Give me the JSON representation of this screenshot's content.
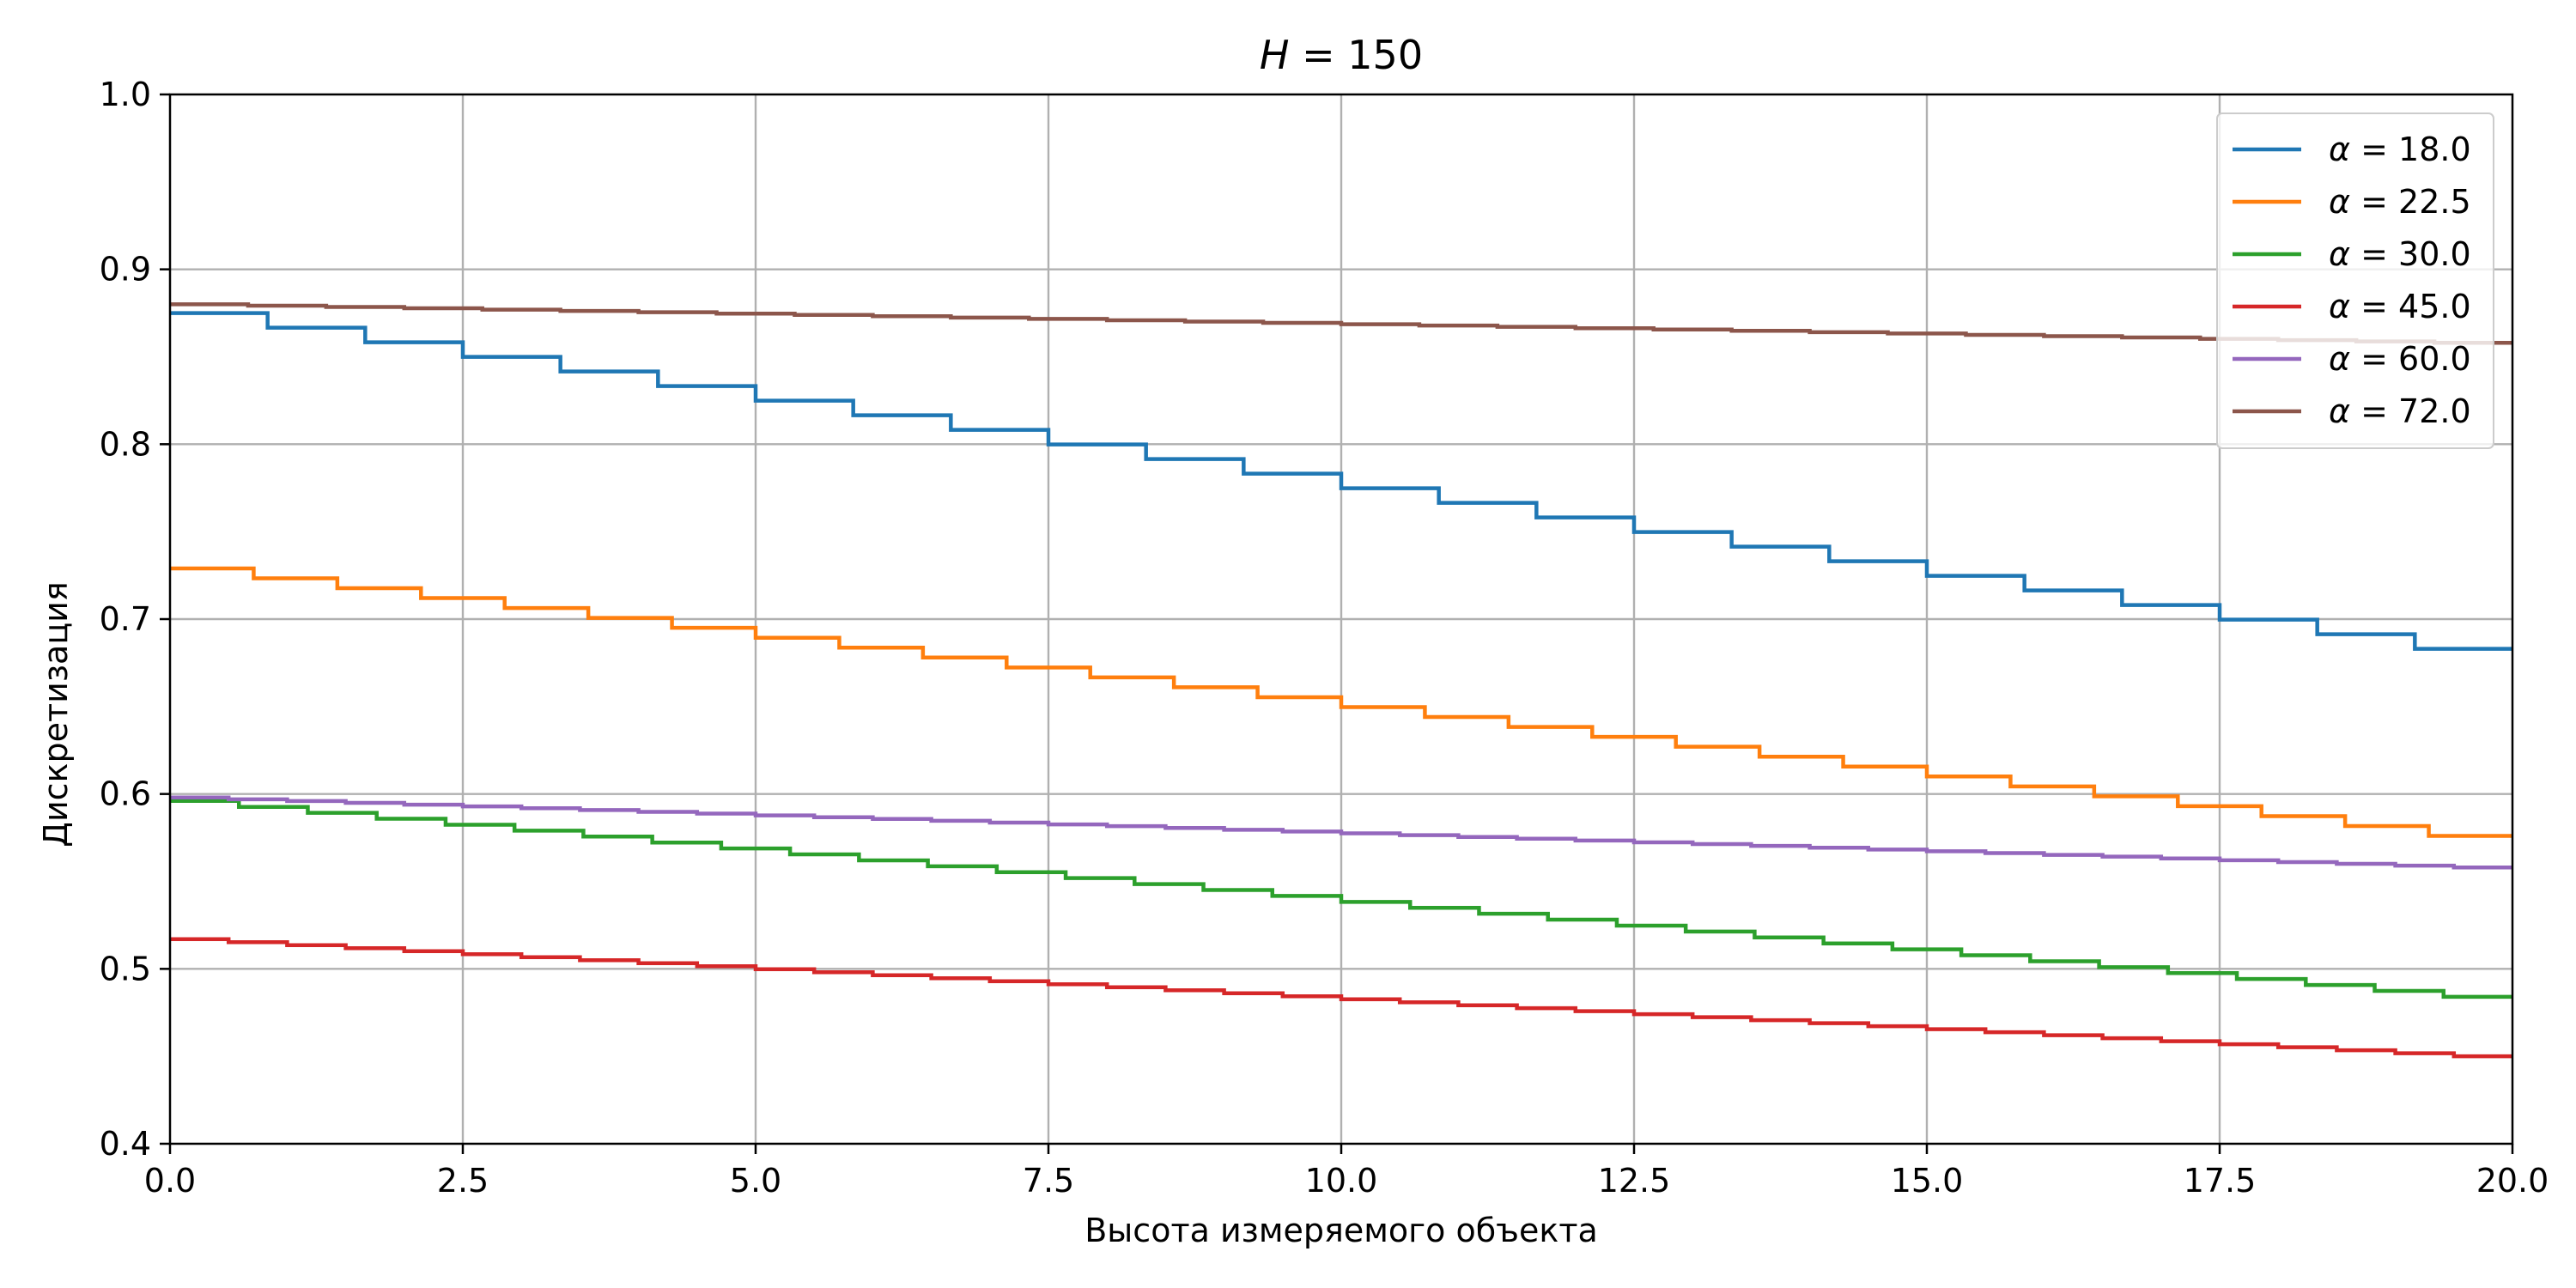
{
  "chart_data": {
    "type": "line",
    "drawstyle": "steps-post",
    "title": "H = 150",
    "title_parts": {
      "var": "H",
      "rest": " = 150"
    },
    "xlabel": "Высота измеряемого объекта",
    "ylabel": "Дискретизация",
    "xlim": [
      0,
      20
    ],
    "ylim": [
      0.4,
      1.0
    ],
    "xticks": [
      0,
      2.5,
      5,
      7.5,
      10,
      12.5,
      15,
      17.5,
      20
    ],
    "xtick_labels": [
      "0.0",
      "2.5",
      "5.0",
      "7.5",
      "10.0",
      "12.5",
      "15.0",
      "17.5",
      "20.0"
    ],
    "yticks": [
      0.4,
      0.5,
      0.6,
      0.7,
      0.8,
      0.9,
      1.0
    ],
    "ytick_labels": [
      "0.4",
      "0.5",
      "0.6",
      "0.7",
      "0.8",
      "0.9",
      "1.0"
    ],
    "grid": true,
    "legend_position": "top-right",
    "series": [
      {
        "name": "α = 18.0",
        "alpha": "18.0",
        "color": "#1f77b4",
        "x_start": 0,
        "x_end": 20,
        "y_start": 0.875,
        "y_end": 0.683,
        "steps": 24
      },
      {
        "name": "α = 22.5",
        "alpha": "22.5",
        "color": "#ff7f0e",
        "x_start": 0,
        "x_end": 20,
        "y_start": 0.729,
        "y_end": 0.576,
        "steps": 28
      },
      {
        "name": "α = 30.0",
        "alpha": "30.0",
        "color": "#2ca02c",
        "x_start": 0,
        "x_end": 20,
        "y_start": 0.596,
        "y_end": 0.484,
        "steps": 34
      },
      {
        "name": "α = 45.0",
        "alpha": "45.0",
        "color": "#d62728",
        "x_start": 0,
        "x_end": 20,
        "y_start": 0.517,
        "y_end": 0.45,
        "steps": 40
      },
      {
        "name": "α = 60.0",
        "alpha": "60.0",
        "color": "#9467bd",
        "x_start": 0,
        "x_end": 20,
        "y_start": 0.598,
        "y_end": 0.558,
        "steps": 40
      },
      {
        "name": "α = 72.0",
        "alpha": "72.0",
        "color": "#8c564b",
        "x_start": 0,
        "x_end": 20,
        "y_start": 0.88,
        "y_end": 0.858,
        "steps": 30
      }
    ]
  }
}
